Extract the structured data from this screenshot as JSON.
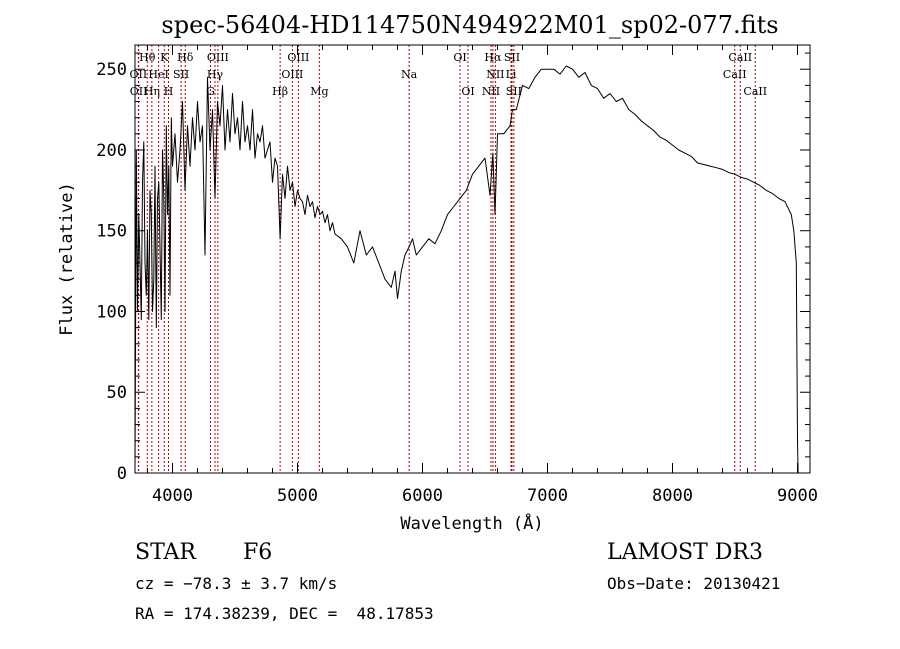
{
  "chart_data": {
    "type": "line",
    "title": "spec-56404-HD114750N494922M01_sp02-077.fits",
    "xlabel": "Wavelength (Å)",
    "ylabel": "Flux (relative)",
    "xlim": [
      3700,
      9100
    ],
    "ylim": [
      0,
      265
    ],
    "xticks": [
      4000,
      5000,
      6000,
      7000,
      8000,
      9000
    ],
    "yticks": [
      0,
      50,
      100,
      150,
      200,
      250
    ],
    "xtick_labels": [
      "4000",
      "5000",
      "6000",
      "7000",
      "8000",
      "9000"
    ],
    "ytick_labels": [
      "0",
      "50",
      "100",
      "150",
      "200",
      "250"
    ],
    "grid": false,
    "series": [
      {
        "name": "flux",
        "x": [
          3700,
          3710,
          3720,
          3730,
          3740,
          3750,
          3760,
          3770,
          3780,
          3790,
          3800,
          3810,
          3820,
          3830,
          3840,
          3850,
          3860,
          3870,
          3880,
          3890,
          3900,
          3910,
          3920,
          3930,
          3940,
          3950,
          3960,
          3970,
          3980,
          3990,
          4000,
          4020,
          4040,
          4060,
          4080,
          4100,
          4120,
          4140,
          4160,
          4180,
          4200,
          4220,
          4240,
          4260,
          4280,
          4300,
          4320,
          4340,
          4360,
          4380,
          4400,
          4420,
          4440,
          4460,
          4480,
          4500,
          4520,
          4540,
          4560,
          4580,
          4600,
          4620,
          4640,
          4660,
          4680,
          4700,
          4720,
          4740,
          4760,
          4780,
          4800,
          4820,
          4840,
          4861,
          4880,
          4900,
          4920,
          4940,
          4960,
          4980,
          5000,
          5020,
          5040,
          5060,
          5080,
          5100,
          5120,
          5140,
          5160,
          5180,
          5200,
          5220,
          5240,
          5260,
          5280,
          5300,
          5350,
          5400,
          5450,
          5500,
          5550,
          5600,
          5650,
          5700,
          5750,
          5780,
          5800,
          5830,
          5860,
          5893,
          5920,
          5950,
          6000,
          6050,
          6100,
          6150,
          6200,
          6250,
          6300,
          6350,
          6400,
          6450,
          6500,
          6540,
          6563,
          6580,
          6600,
          6650,
          6700,
          6720,
          6750,
          6800,
          6850,
          6900,
          6950,
          7000,
          7050,
          7100,
          7150,
          7200,
          7250,
          7300,
          7350,
          7400,
          7450,
          7500,
          7550,
          7600,
          7650,
          7700,
          7750,
          7800,
          7850,
          7900,
          7950,
          8000,
          8050,
          8100,
          8150,
          8200,
          8250,
          8300,
          8350,
          8400,
          8450,
          8500,
          8550,
          8600,
          8650,
          8700,
          8750,
          8800,
          8850,
          8900,
          8950,
          8970,
          8990,
          9000,
          9005
        ],
        "values": [
          0,
          200,
          100,
          160,
          130,
          95,
          180,
          205,
          130,
          110,
          150,
          95,
          175,
          160,
          100,
          120,
          190,
          90,
          170,
          180,
          140,
          95,
          200,
          170,
          100,
          215,
          160,
          190,
          110,
          220,
          190,
          210,
          180,
          200,
          230,
          175,
          215,
          190,
          220,
          200,
          230,
          205,
          215,
          135,
          245,
          200,
          225,
          170,
          230,
          215,
          240,
          200,
          225,
          205,
          235,
          210,
          220,
          200,
          230,
          205,
          215,
          200,
          225,
          195,
          210,
          205,
          215,
          195,
          200,
          205,
          180,
          195,
          190,
          145,
          185,
          170,
          190,
          175,
          180,
          165,
          175,
          170,
          168,
          160,
          172,
          165,
          168,
          158,
          165,
          160,
          162,
          155,
          160,
          150,
          155,
          148,
          145,
          140,
          130,
          150,
          135,
          140,
          130,
          120,
          115,
          125,
          108,
          125,
          135,
          140,
          145,
          135,
          140,
          145,
          142,
          150,
          160,
          165,
          170,
          175,
          185,
          190,
          195,
          172,
          198,
          160,
          210,
          210,
          215,
          225,
          225,
          240,
          238,
          245,
          250,
          250,
          250,
          247,
          252,
          250,
          245,
          248,
          240,
          238,
          232,
          235,
          230,
          232,
          225,
          222,
          218,
          215,
          212,
          208,
          206,
          203,
          200,
          198,
          196,
          192,
          191,
          190,
          189,
          188,
          186,
          185,
          183,
          182,
          180,
          178,
          175,
          173,
          170,
          168,
          160,
          150,
          130,
          20,
          0
        ]
      }
    ],
    "line_markers": [
      {
        "label": "Hθ",
        "wave": 3798,
        "row": 0
      },
      {
        "label": "OII",
        "wave": 3727,
        "row": 1
      },
      {
        "label": "OII",
        "wave": 3729,
        "row": 2
      },
      {
        "label": "Hη",
        "wave": 3835,
        "row": 2
      },
      {
        "label": "HeI",
        "wave": 3889,
        "row": 1
      },
      {
        "label": "K",
        "wave": 3934,
        "row": 0
      },
      {
        "label": "H",
        "wave": 3968,
        "row": 2
      },
      {
        "label": "SII",
        "wave": 4069,
        "row": 1
      },
      {
        "label": "Hδ",
        "wave": 4102,
        "row": 0
      },
      {
        "label": "G",
        "wave": 4304,
        "row": 2
      },
      {
        "label": "Hγ",
        "wave": 4340,
        "row": 1
      },
      {
        "label": "OIII",
        "wave": 4363,
        "row": 0
      },
      {
        "label": "Hβ",
        "wave": 4861,
        "row": 2
      },
      {
        "label": "OIII",
        "wave": 4959,
        "row": 1
      },
      {
        "label": "OIII",
        "wave": 5007,
        "row": 0
      },
      {
        "label": "Mg",
        "wave": 5175,
        "row": 2
      },
      {
        "label": "Na",
        "wave": 5893,
        "row": 1
      },
      {
        "label": "OI",
        "wave": 6300,
        "row": 0
      },
      {
        "label": "OI",
        "wave": 6364,
        "row": 2
      },
      {
        "label": "NII",
        "wave": 6548,
        "row": 2
      },
      {
        "label": "Hα",
        "wave": 6563,
        "row": 0
      },
      {
        "label": "NII",
        "wave": 6583,
        "row": 1
      },
      {
        "label": "Li",
        "wave": 6708,
        "row": 1
      },
      {
        "label": "SII",
        "wave": 6716,
        "row": 0
      },
      {
        "label": "SII",
        "wave": 6731,
        "row": 2
      },
      {
        "label": "CaII",
        "wave": 8498,
        "row": 1
      },
      {
        "label": "CaII",
        "wave": 8542,
        "row": 0
      },
      {
        "label": "CaII",
        "wave": 8662,
        "row": 2
      }
    ]
  },
  "info": {
    "object_class": "STAR",
    "subclass": "F6",
    "survey": "LAMOST DR3",
    "cz": "cz = −78.3 ± 3.7 km/s",
    "obs_date": "Obs−Date: 20130421",
    "coords": "RA = 174.38239, DEC =  48.17853"
  },
  "colors": {
    "line": "#000000",
    "marker": "#b30000",
    "background": "#ffffff"
  }
}
